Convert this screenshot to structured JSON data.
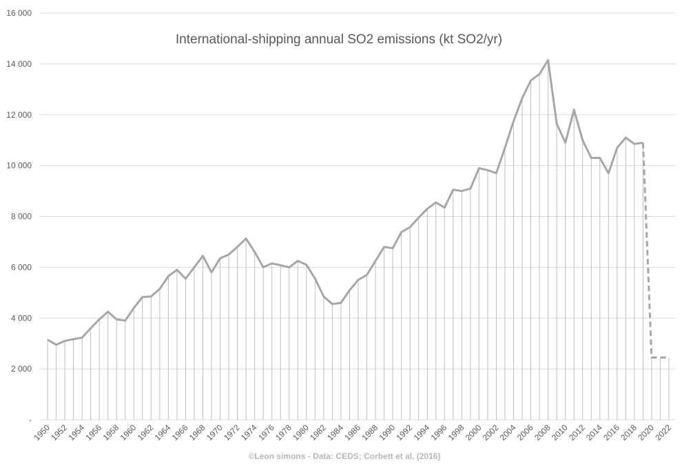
{
  "chart_data": {
    "type": "line",
    "title": "International-shipping annual SO2 emissions (kt SO2/yr)",
    "credit": "©Leon simons - Data: CEDS; Corbett et al. (2016)",
    "xlabel": "",
    "ylabel": "",
    "x": [
      1950,
      1951,
      1952,
      1953,
      1954,
      1955,
      1956,
      1957,
      1958,
      1959,
      1960,
      1961,
      1962,
      1963,
      1964,
      1965,
      1966,
      1967,
      1968,
      1969,
      1970,
      1971,
      1972,
      1973,
      1974,
      1975,
      1976,
      1977,
      1978,
      1979,
      1980,
      1981,
      1982,
      1983,
      1984,
      1985,
      1986,
      1987,
      1988,
      1989,
      1990,
      1991,
      1992,
      1993,
      1994,
      1995,
      1996,
      1997,
      1998,
      1999,
      2000,
      2001,
      2002,
      2003,
      2004,
      2005,
      2006,
      2007,
      2008,
      2009,
      2010,
      2011,
      2012,
      2013,
      2014,
      2015,
      2016,
      2017,
      2018,
      2019,
      2020,
      2021,
      2022
    ],
    "x_tick_labels": [
      "1950",
      "1952",
      "1954",
      "1956",
      "1958",
      "1960",
      "1962",
      "1964",
      "1966",
      "1968",
      "1970",
      "1972",
      "1974",
      "1976",
      "1978",
      "1980",
      "1982",
      "1984",
      "1986",
      "1988",
      "1990",
      "1992",
      "1994",
      "1996",
      "1998",
      "2000",
      "2002",
      "2004",
      "2006",
      "2008",
      "2010",
      "2012",
      "2014",
      "2016",
      "2018",
      "2020",
      "2022"
    ],
    "y_tick_labels": [
      "-",
      "2 000",
      "4 000",
      "6 000",
      "8 000",
      "10 000",
      "12 000",
      "14 000",
      "16 000"
    ],
    "ylim": [
      0,
      16000
    ],
    "grid": true,
    "drop_lines": true,
    "series": [
      {
        "values": [
          3150,
          2950,
          3100,
          3170,
          3230,
          3600,
          3950,
          4250,
          3950,
          3900,
          4400,
          4830,
          4850,
          5150,
          5650,
          5900,
          5550,
          6000,
          6450,
          5800,
          6350,
          6500,
          6800,
          7130,
          6600,
          6000,
          6150,
          6080,
          6000,
          6250,
          6100,
          5550,
          4850,
          4550,
          4600,
          5100,
          5500,
          5700,
          6250,
          6800,
          6750,
          7380,
          7580,
          7950,
          8300,
          8550,
          8350,
          9050,
          9000,
          9100,
          9900,
          9820,
          9700,
          10700,
          11750,
          12650,
          13350,
          13600,
          14150,
          11650,
          10900,
          12200,
          11000,
          10300,
          10300,
          9700,
          10700,
          11100,
          10850,
          10900,
          2450,
          2450,
          2450
        ],
        "solid_until_index": 69
      }
    ],
    "colors": {
      "line": "#a6a6a6",
      "grid": "#d9d9d9",
      "drop": "#bfbfbf"
    }
  }
}
